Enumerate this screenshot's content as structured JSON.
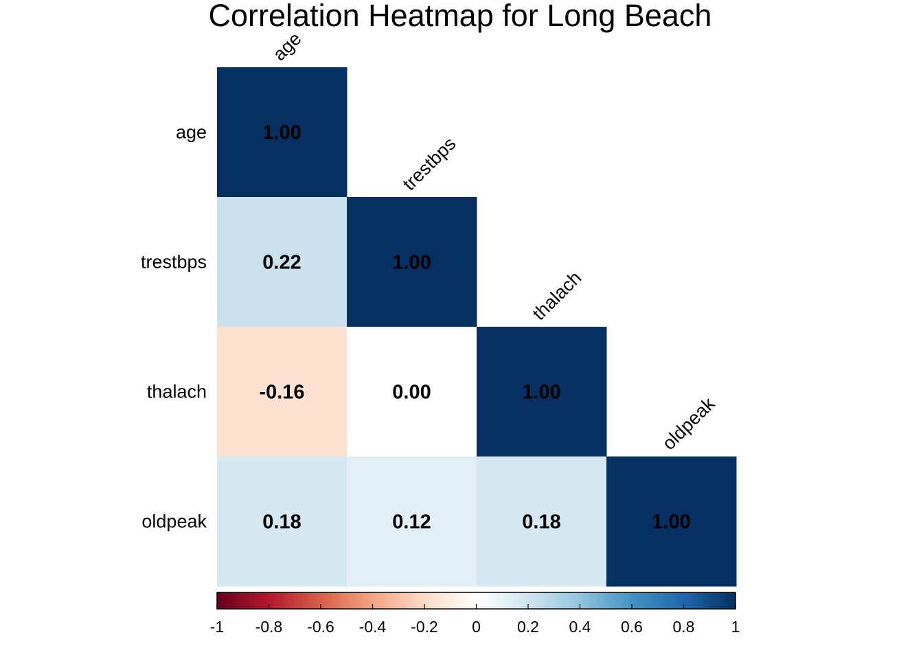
{
  "chart_data": {
    "type": "heatmap",
    "title": "Correlation Heatmap for Long Beach",
    "variables": [
      "age",
      "trestbps",
      "thalach",
      "oldpeak"
    ],
    "matrix": [
      [
        1.0,
        null,
        null,
        null
      ],
      [
        0.22,
        1.0,
        null,
        null
      ],
      [
        -0.16,
        0.0,
        1.0,
        null
      ],
      [
        0.18,
        0.12,
        0.18,
        1.0
      ]
    ],
    "value_labels": [
      [
        "1.00",
        "",
        "",
        ""
      ],
      [
        "0.22",
        "1.00",
        "",
        ""
      ],
      [
        "-0.16",
        "0.00",
        "1.00",
        ""
      ],
      [
        "0.18",
        "0.12",
        "0.18",
        "1.00"
      ]
    ],
    "layout": "lower-triangle",
    "colorbar": {
      "min": -1,
      "max": 1,
      "ticks": [
        "-1",
        "-0.8",
        "-0.6",
        "-0.4",
        "-0.2",
        "0",
        "0.2",
        "0.4",
        "0.6",
        "0.8",
        "1"
      ],
      "tick_values": [
        -1,
        -0.8,
        -0.6,
        -0.4,
        -0.2,
        0,
        0.2,
        0.4,
        0.6,
        0.8,
        1
      ],
      "colors": [
        "#67001F",
        "#B2182B",
        "#D6604D",
        "#F4A582",
        "#FDDBC7",
        "#FFFFFF",
        "#D1E5F0",
        "#92C5DE",
        "#4393C3",
        "#2166AC",
        "#053061"
      ],
      "placement": "bottom"
    },
    "grid": false
  }
}
